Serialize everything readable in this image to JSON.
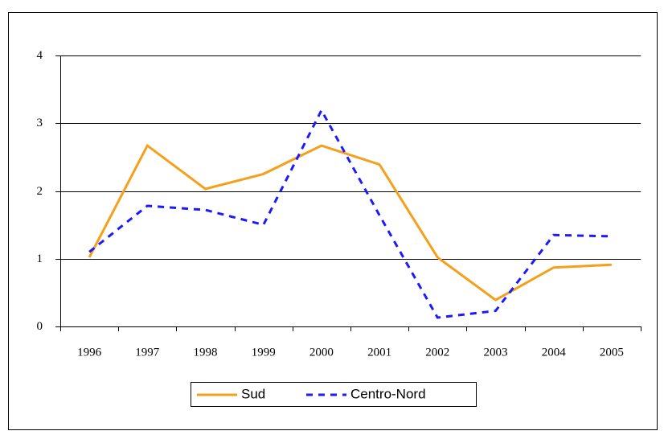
{
  "chart_data": {
    "type": "line",
    "categories": [
      "1996",
      "1997",
      "1998",
      "1999",
      "2000",
      "2001",
      "2002",
      "2003",
      "2004",
      "2005"
    ],
    "series": [
      {
        "name": "Sud",
        "color": "#f59f1a",
        "dash": false,
        "values": [
          1.02,
          2.67,
          2.03,
          2.25,
          2.67,
          2.39,
          1.02,
          0.39,
          0.87,
          0.91
        ]
      },
      {
        "name": "Centro-Nord",
        "color": "#1a1aff",
        "dash": true,
        "values": [
          1.1,
          1.78,
          1.72,
          1.5,
          3.19,
          1.64,
          0.13,
          0.23,
          1.35,
          1.33
        ]
      }
    ],
    "ylim": [
      0,
      4
    ],
    "yticks": [
      0,
      1,
      2,
      3,
      4
    ],
    "grid": true,
    "legend": "bottom"
  }
}
